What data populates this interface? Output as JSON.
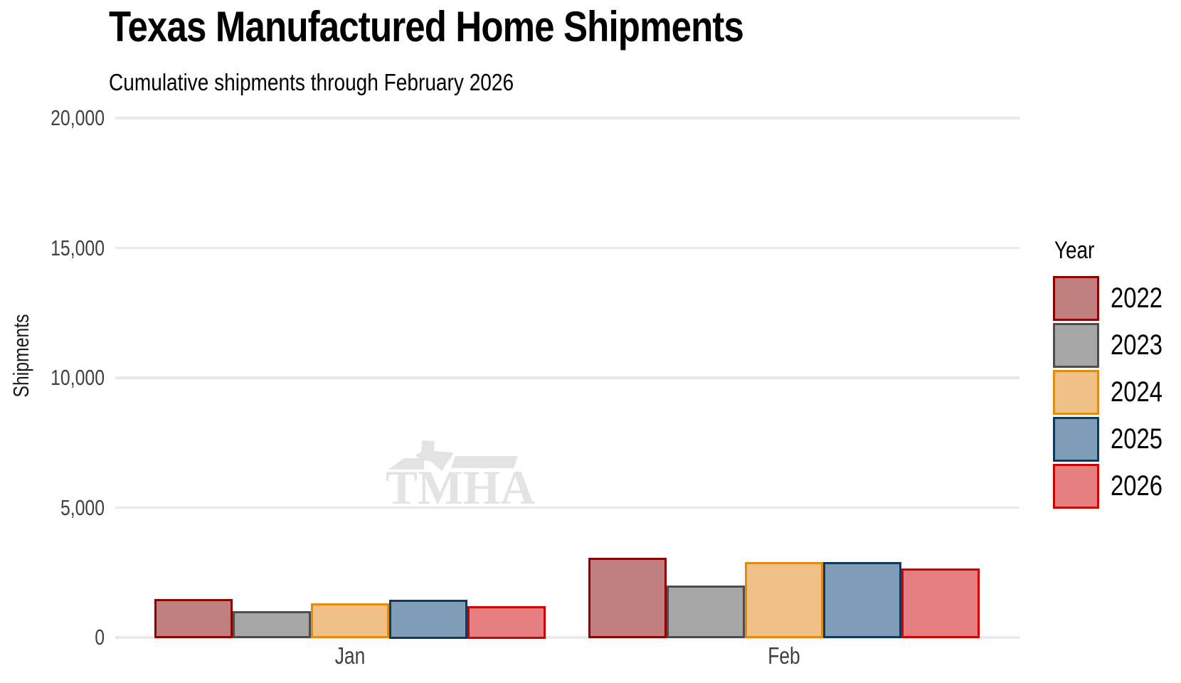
{
  "chart_data": {
    "type": "bar",
    "title": "Texas Manufactured Home Shipments",
    "subtitle": "Cumulative shipments through February 2026",
    "categories": [
      "Jan",
      "Feb"
    ],
    "series": [
      {
        "name": "2022",
        "values": [
          1525,
          3100
        ],
        "fill": "#c08080",
        "stroke": "#8b0000"
      },
      {
        "name": "2023",
        "values": [
          1050,
          2050
        ],
        "fill": "#a6a6a6",
        "stroke": "#4d4d4d"
      },
      {
        "name": "2024",
        "values": [
          1350,
          2950
        ],
        "fill": "#efc189",
        "stroke": "#e5890f"
      },
      {
        "name": "2025",
        "values": [
          1500,
          2950
        ],
        "fill": "#7f9db7",
        "stroke": "#10395c"
      },
      {
        "name": "2026",
        "values": [
          1250,
          2700
        ],
        "fill": "#e57f81",
        "stroke": "#d10000"
      }
    ],
    "xlabel": "",
    "ylabel": "Shipments",
    "ylim": [
      0,
      20000
    ],
    "yticks": [
      0,
      5000,
      10000,
      15000,
      20000
    ],
    "ytick_labels": [
      "0",
      "5,000",
      "10,000",
      "15,000",
      "20,000"
    ],
    "grid": "horizontal",
    "legend_title": "Year",
    "legend_position": "right",
    "watermark": "TMHA"
  },
  "watermark": {
    "text": "TMHA"
  },
  "colors": {
    "background": "#ffffff",
    "grid": "#e9e9e9",
    "axis_text": "#404040",
    "title_text": "#000000",
    "watermark": "#e3e3e3"
  }
}
